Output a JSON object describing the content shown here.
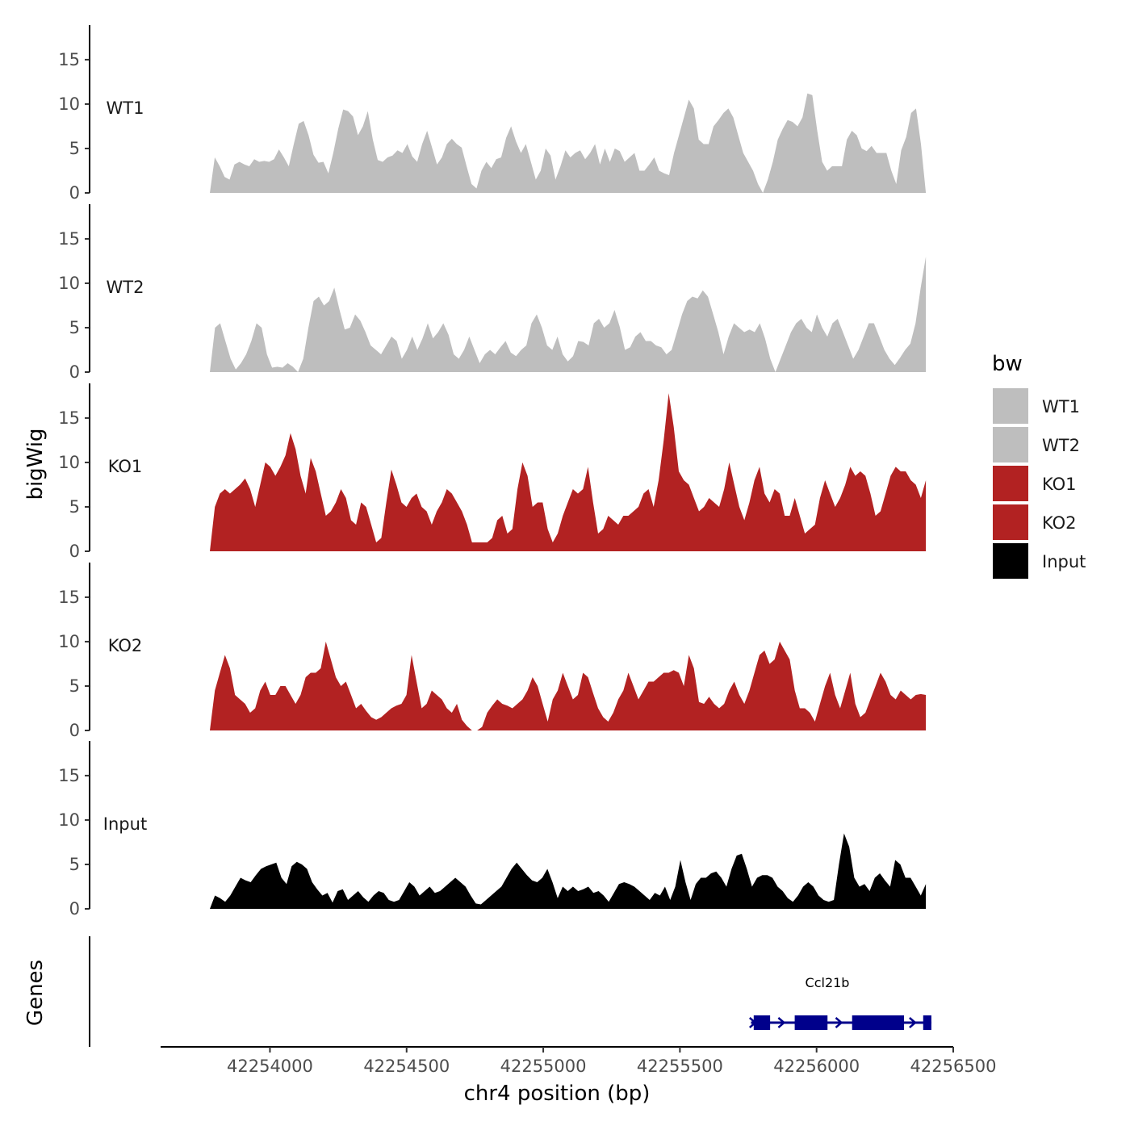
{
  "chart_data": {
    "type": "area",
    "xlabel": "chr4 position (bp)",
    "ylabel": "bigWig",
    "gene_track_label": "Genes",
    "xlim": [
      42253600,
      42256500
    ],
    "x_ticks": [
      42254000,
      42254500,
      42255000,
      42255500,
      42256000,
      42256500
    ],
    "x_tick_labels": [
      "42254000",
      "42254500",
      "42255000",
      "42255500",
      "42256000",
      "42256500"
    ],
    "ylim": [
      0,
      18.9
    ],
    "y_ticks": [
      0,
      5,
      10,
      15
    ],
    "y_tick_labels": [
      "0",
      "5",
      "10",
      "15"
    ],
    "x_start": 42253780,
    "x_end": 42256400,
    "legend": {
      "title": "bw",
      "placement": "right",
      "entries": [
        {
          "label": "WT1",
          "color": "#bebebe"
        },
        {
          "label": "WT2",
          "color": "#bebebe"
        },
        {
          "label": "KO1",
          "color": "#b22222"
        },
        {
          "label": "KO2",
          "color": "#b22222"
        },
        {
          "label": "Input",
          "color": "#000000"
        }
      ]
    },
    "series": [
      {
        "name": "WT1",
        "color": "#bebebe",
        "values": [
          0,
          4,
          3,
          1.8,
          1.5,
          3.2,
          3.5,
          3.2,
          3,
          3.8,
          3.5,
          3.6,
          3.5,
          3.8,
          4.9,
          4,
          3,
          5.5,
          7.8,
          8.1,
          6.5,
          4.3,
          3.4,
          3.5,
          2.2,
          4.5,
          7.2,
          9.4,
          9.2,
          8.6,
          6.5,
          7.5,
          9.2,
          6,
          3.7,
          3.5,
          4,
          4.2,
          4.8,
          4.5,
          5.5,
          4.1,
          3.5,
          5.5,
          7,
          5.1,
          3.2,
          4,
          5.5,
          6.1,
          5.5,
          5.1,
          3,
          1,
          0.5,
          2.5,
          3.5,
          2.8,
          3.8,
          4,
          6.2,
          7.5,
          5.8,
          4.5,
          5.5,
          3.5,
          1.5,
          2.5,
          5,
          4.2,
          1.5,
          3,
          4.8,
          4,
          4.5,
          4.8,
          3.8,
          4.5,
          5.5,
          3.2,
          5,
          3.5,
          5,
          4.7,
          3.5,
          4,
          4.5,
          2.5,
          2.5,
          3.2,
          4,
          2.5,
          2.2,
          2,
          4.5,
          6.5,
          8.5,
          10.5,
          9.5,
          6,
          5.5,
          5.5,
          7.5,
          8.2,
          9,
          9.5,
          8.5,
          6.5,
          4.5,
          3.5,
          2.5,
          1,
          0,
          1.5,
          3.5,
          6,
          7.2,
          8.2,
          8,
          7.5,
          8.5,
          11.2,
          11,
          7,
          3.5,
          2.5,
          3,
          3,
          3,
          6,
          7,
          6.5,
          5,
          4.7,
          5.3,
          4.5,
          4.5,
          4.5,
          2.5,
          1,
          4.8,
          6.3,
          9,
          9.5,
          5.5,
          0
        ]
      },
      {
        "name": "WT2",
        "color": "#bebebe",
        "values": [
          0,
          5,
          5.5,
          3.5,
          1.5,
          0.3,
          1,
          2,
          3.5,
          5.5,
          5,
          2,
          0.5,
          0.6,
          0.5,
          1,
          0.6,
          0,
          1.5,
          5,
          8,
          8.5,
          7.5,
          8,
          9.5,
          7,
          4.8,
          5,
          6.5,
          5.8,
          4.5,
          3,
          2.5,
          2,
          3,
          4,
          3.5,
          1.5,
          2.5,
          4,
          2.5,
          3.8,
          5.5,
          3.8,
          4.5,
          5.5,
          4.2,
          2,
          1.5,
          2.5,
          4,
          2.5,
          1,
          2,
          2.5,
          2,
          2.8,
          3.5,
          2.2,
          1.8,
          2.5,
          3,
          5.5,
          6.5,
          5,
          3,
          2.5,
          4,
          2,
          1.2,
          1.8,
          3.5,
          3.4,
          3,
          5.5,
          6,
          5,
          5.5,
          7,
          5.1,
          2.5,
          2.8,
          4,
          4.5,
          3.5,
          3.5,
          3,
          2.8,
          2,
          2.5,
          4.5,
          6.5,
          8,
          8.5,
          8.3,
          9.2,
          8.5,
          6.5,
          4.5,
          2,
          4,
          5.5,
          5,
          4.5,
          4.8,
          4.5,
          5.5,
          3.8,
          1.5,
          0,
          1.5,
          3,
          4.5,
          5.5,
          6,
          5,
          4.5,
          6.5,
          5,
          4,
          5.5,
          6,
          4.5,
          3,
          1.5,
          2.5,
          4,
          5.5,
          5.5,
          4,
          2.5,
          1.5,
          0.8,
          1.6,
          2.5,
          3.2,
          5.5,
          9.5,
          13
        ]
      },
      {
        "name": "KO1",
        "color": "#b22222",
        "values": [
          0,
          5,
          6.5,
          7,
          6.5,
          7,
          7.5,
          8.2,
          7,
          5,
          7.5,
          10,
          9.5,
          8.5,
          9.5,
          10.8,
          13.3,
          11.5,
          8.5,
          6.5,
          10.5,
          9,
          6.5,
          4,
          4.5,
          5.5,
          7,
          6,
          3.5,
          3,
          5.5,
          5,
          3,
          1,
          1.5,
          5.5,
          9.2,
          7.5,
          5.5,
          5,
          6,
          6.5,
          5,
          4.5,
          3,
          4.5,
          5.5,
          7,
          6.5,
          5.5,
          4.5,
          3,
          1,
          1,
          1,
          1,
          1.5,
          3.5,
          4,
          2,
          2.5,
          7,
          10,
          8.5,
          5,
          5.5,
          5.5,
          2.5,
          1,
          2,
          4,
          5.5,
          7,
          6.5,
          7,
          9.5,
          5.5,
          2,
          2.5,
          4,
          3.5,
          3,
          4,
          4,
          4.5,
          5,
          6.5,
          7,
          5,
          8,
          12.5,
          17.8,
          14,
          9,
          8,
          7.5,
          6,
          4.5,
          5,
          6,
          5.5,
          5,
          7,
          10,
          7.5,
          5,
          3.5,
          5.5,
          8,
          9.5,
          6.5,
          5.5,
          7,
          6.5,
          4,
          4,
          6,
          4,
          2,
          2.5,
          3,
          6,
          8,
          6.5,
          5,
          6,
          7.5,
          9.5,
          8.5,
          9,
          8.5,
          6.5,
          4,
          4.5,
          6.5,
          8.5,
          9.5,
          9,
          9,
          8,
          7.5,
          6,
          8
        ]
      },
      {
        "name": "KO2",
        "color": "#b22222",
        "values": [
          0,
          4.5,
          6.5,
          8.5,
          7,
          4,
          3.5,
          3,
          2,
          2.5,
          4.5,
          5.5,
          4,
          4,
          5,
          5,
          4,
          3,
          4,
          6,
          6.5,
          6.5,
          7,
          10,
          8,
          6,
          5,
          5.5,
          4,
          2.5,
          3,
          2.2,
          1.5,
          1.2,
          1.5,
          2,
          2.5,
          2.8,
          3,
          4,
          8.5,
          5.5,
          2.5,
          3,
          4.5,
          4,
          3.5,
          2.5,
          2,
          3,
          1.2,
          0.5,
          0,
          0,
          0.4,
          2,
          2.8,
          3.5,
          3,
          2.8,
          2.5,
          3,
          3.5,
          4.5,
          6,
          5,
          3,
          1,
          3.5,
          4.5,
          6.5,
          5,
          3.5,
          4,
          6.5,
          6,
          4.2,
          2.5,
          1.5,
          1,
          2,
          3.5,
          4.5,
          6.5,
          5,
          3.5,
          4.5,
          5.5,
          5.5,
          6,
          6.5,
          6.5,
          6.8,
          6.5,
          5,
          8.5,
          7,
          3.2,
          3,
          3.8,
          3,
          2.5,
          3,
          4.5,
          5.5,
          4,
          3,
          4.5,
          6.5,
          8.5,
          9,
          7.5,
          8,
          10,
          9,
          8,
          4.5,
          2.5,
          2.5,
          2,
          1,
          3,
          5,
          6.5,
          4,
          2.5,
          4.5,
          6.5,
          3,
          1.5,
          2,
          3.5,
          5,
          6.5,
          5.5,
          4,
          3.5,
          4.5,
          4,
          3.5,
          4,
          4.1,
          4
        ]
      },
      {
        "name": "Input",
        "color": "#000000",
        "values": [
          0,
          1.5,
          1.2,
          0.8,
          1.5,
          2.5,
          3.5,
          3.2,
          3,
          3.8,
          4.5,
          4.8,
          5,
          5.2,
          3.5,
          2.8,
          4.8,
          5.3,
          5,
          4.5,
          3,
          2.2,
          1.5,
          1.8,
          0.7,
          2,
          2.2,
          1,
          1.5,
          2,
          1.3,
          0.8,
          1.5,
          2,
          1.8,
          1,
          0.8,
          1,
          2,
          3,
          2.5,
          1.5,
          2,
          2.5,
          1.8,
          2,
          2.5,
          3,
          3.5,
          3,
          2.5,
          1.5,
          0.6,
          0.5,
          1,
          1.5,
          2,
          2.5,
          3.5,
          4.5,
          5.2,
          4.5,
          3.8,
          3.2,
          3,
          3.5,
          4.5,
          3,
          1.2,
          2.5,
          2,
          2.5,
          2,
          2.2,
          2.5,
          1.8,
          2,
          1.5,
          0.8,
          1.8,
          2.8,
          3,
          2.8,
          2.5,
          2,
          1.5,
          1,
          1.8,
          1.5,
          2.5,
          1,
          2.5,
          5.5,
          3,
          1,
          2.8,
          3.5,
          3.5,
          4,
          4.2,
          3.5,
          2.5,
          4.5,
          6,
          6.2,
          4.5,
          2.5,
          3.5,
          3.8,
          3.8,
          3.5,
          2.5,
          2,
          1.2,
          0.8,
          1.5,
          2.5,
          3,
          2.5,
          1.5,
          1,
          0.8,
          1,
          5,
          8.5,
          7,
          3.5,
          2.5,
          2.8,
          2,
          3.5,
          4,
          3.2,
          2.5,
          5.5,
          5,
          3.5,
          3.5,
          2.5,
          1.5,
          2.8
        ]
      }
    ],
    "gene_annotation": {
      "label": "Ccl21b",
      "strand": "+",
      "start": 42255760,
      "end": 42256420,
      "exons": [
        [
          42255770,
          42255830
        ],
        [
          42255920,
          42256040
        ],
        [
          42256130,
          42256320
        ],
        [
          42256390,
          42256420
        ]
      ]
    }
  }
}
